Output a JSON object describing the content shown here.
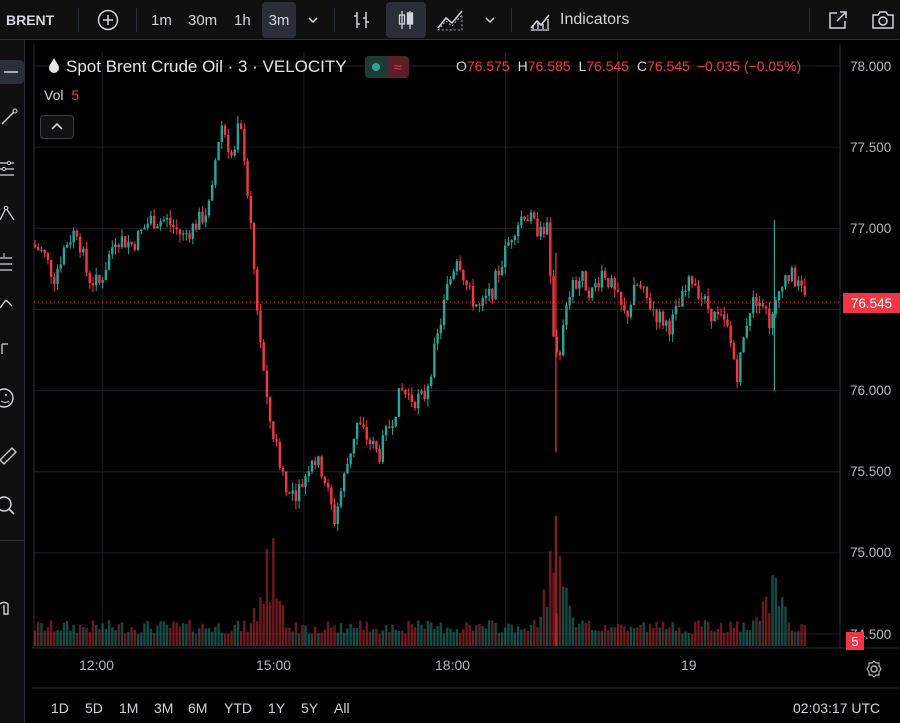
{
  "toolbar": {
    "symbol": "BRENT",
    "intervals": [
      "1m",
      "30m",
      "1h",
      "3m"
    ],
    "active_interval": "3m",
    "indicators_label": "Indicators"
  },
  "legend": {
    "title": "Spot Brent Crude Oil · 3 · VELOCITY",
    "o_label": "O",
    "o_value": "76.575",
    "h_label": "H",
    "h_value": "76.585",
    "l_label": "L",
    "l_value": "76.545",
    "c_label": "C",
    "c_value": "76.545",
    "change": "−0.035 (−0.05%)",
    "vol_label": "Vol",
    "vol_value": "5"
  },
  "price_axis": {
    "labels": [
      "78.000",
      "77.500",
      "77.000",
      "76.000",
      "75.500",
      "75.000",
      "74.500"
    ],
    "last_price": "76.545",
    "last_volume": "5"
  },
  "time_axis": {
    "labels": [
      "12:00",
      "15:00",
      "18:00",
      "19"
    ]
  },
  "bottom": {
    "ranges": [
      "1D",
      "5D",
      "1M",
      "3M",
      "6M",
      "YTD",
      "1Y",
      "5Y",
      "All"
    ],
    "clock": "02:03:17 UTC"
  },
  "colors": {
    "up": "#26a69a",
    "down": "#f23645",
    "background": "#000000",
    "grid": "#1c1f26"
  },
  "chart_data": {
    "type": "candlestick",
    "y_range": [
      74.45,
      78.05
    ],
    "series": [
      {
        "name": "price_path",
        "points": [
          [
            "11:00",
            76.9
          ],
          [
            "11:10",
            76.85
          ],
          [
            "11:20",
            76.7
          ],
          [
            "11:30",
            76.9
          ],
          [
            "11:40",
            77.0
          ],
          [
            "11:50",
            76.7
          ],
          [
            "12:00",
            76.65
          ],
          [
            "12:15",
            76.95
          ],
          [
            "12:30",
            76.9
          ],
          [
            "12:45",
            77.05
          ],
          [
            "13:00",
            77.05
          ],
          [
            "13:15",
            76.95
          ],
          [
            "13:30",
            77.05
          ],
          [
            "13:40",
            77.15
          ],
          [
            "13:45",
            77.5
          ],
          [
            "13:50",
            77.65
          ],
          [
            "14:00",
            77.4
          ],
          [
            "14:05",
            77.65
          ],
          [
            "14:10",
            77.45
          ],
          [
            "14:20",
            76.6
          ],
          [
            "14:30",
            75.9
          ],
          [
            "14:40",
            75.6
          ],
          [
            "14:50",
            75.35
          ],
          [
            "15:00",
            75.4
          ],
          [
            "15:10",
            75.6
          ],
          [
            "15:20",
            75.5
          ],
          [
            "15:30",
            75.2
          ],
          [
            "15:40",
            75.5
          ],
          [
            "15:50",
            75.8
          ],
          [
            "16:00",
            75.7
          ],
          [
            "16:10",
            75.6
          ],
          [
            "16:20",
            75.8
          ],
          [
            "16:30",
            76.0
          ],
          [
            "16:40",
            75.95
          ],
          [
            "16:50",
            75.95
          ],
          [
            "17:00",
            76.25
          ],
          [
            "17:10",
            76.6
          ],
          [
            "17:20",
            76.85
          ],
          [
            "17:30",
            76.6
          ],
          [
            "17:40",
            76.5
          ],
          [
            "17:50",
            76.6
          ],
          [
            "18:00",
            76.8
          ],
          [
            "18:10",
            77.0
          ],
          [
            "18:20",
            77.1
          ],
          [
            "18:30",
            77.0
          ],
          [
            "18:40",
            77.0
          ],
          [
            "18:45",
            76.4
          ],
          [
            "18:50",
            76.2
          ],
          [
            "19:00",
            76.6
          ],
          [
            "19:10",
            76.7
          ],
          [
            "19:20",
            76.6
          ],
          [
            "19:30",
            76.75
          ],
          [
            "19:40",
            76.6
          ],
          [
            "19:50",
            76.45
          ],
          [
            "20:00",
            76.65
          ],
          [
            "20:10",
            76.55
          ],
          [
            "20:20",
            76.45
          ],
          [
            "20:30",
            76.4
          ],
          [
            "20:40",
            76.55
          ],
          [
            "20:50",
            76.7
          ],
          [
            "21:00",
            76.55
          ],
          [
            "21:10",
            76.45
          ],
          [
            "21:20",
            76.4
          ],
          [
            "21:30",
            76.1
          ],
          [
            "21:40",
            76.5
          ],
          [
            "21:50",
            76.6
          ],
          [
            "22:00",
            76.4
          ],
          [
            "22:10",
            76.7
          ],
          [
            "22:20",
            76.7
          ],
          [
            "22:30",
            76.55
          ]
        ]
      },
      {
        "name": "volume",
        "relative_peaks": [
          {
            "time": "14:30",
            "value": 1.0
          },
          {
            "time": "18:45",
            "value": 1.0
          },
          {
            "time": "22:00",
            "value": 0.6
          }
        ]
      }
    ]
  }
}
